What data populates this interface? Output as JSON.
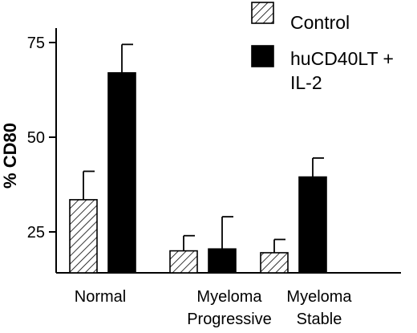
{
  "chart_data": {
    "type": "bar",
    "title": "",
    "xlabel": "",
    "ylabel": "% CD80",
    "categories": [
      [
        "Normal"
      ],
      [
        "Myeloma",
        "Progressive"
      ],
      [
        "Myeloma",
        "Stable"
      ]
    ],
    "series": [
      {
        "name": "Control",
        "pattern": "hatched",
        "color": "#000000",
        "values": [
          33.5,
          20,
          19.5
        ],
        "errors": [
          7.5,
          4,
          3.5
        ]
      },
      {
        "name": "huCD40LT + IL-2",
        "pattern": "solid",
        "color": "#000000",
        "values": [
          67,
          20.5,
          39.5
        ],
        "errors": [
          7.5,
          8.5,
          5
        ]
      }
    ],
    "yticks": [
      25,
      50,
      75
    ],
    "ylim": [
      12.5,
      80
    ],
    "legend_position": "top-right",
    "legend_lines": [
      [
        "Control"
      ],
      [
        "huCD40LT +",
        "IL-2"
      ]
    ],
    "error_bars": "upper",
    "grid": false
  }
}
